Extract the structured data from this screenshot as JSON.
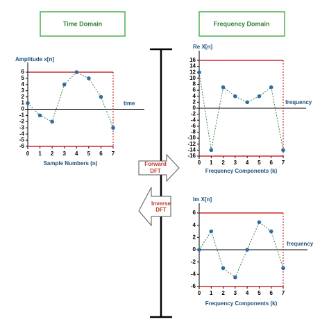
{
  "labels": {
    "time_domain": "Time Domain",
    "frequency_domain": "Frequency Domain",
    "forward": "Forward",
    "forward_dft": "DFT",
    "inverse": "Inverse",
    "inverse_dft": "DFT"
  },
  "chart_data": [
    {
      "type": "line",
      "y_label": "Amplitude x[n]",
      "x_axis_label": "time",
      "x_label": "Sample Numbers (n)",
      "x": [
        0,
        1,
        2,
        3,
        4,
        5,
        6,
        7
      ],
      "values": [
        1,
        -1,
        -2,
        4,
        6,
        5,
        2,
        -3
      ],
      "color": "#2e6da4",
      "xlim": [
        0,
        7
      ],
      "xticks": [
        0,
        1,
        2,
        3,
        4,
        5,
        6,
        7
      ],
      "ylim": [
        -6,
        6
      ],
      "yticks": [
        -6,
        -5,
        -4,
        -3,
        -2,
        -1,
        0,
        1,
        2,
        3,
        4,
        5,
        6
      ],
      "ref_lines": [
        6,
        -6
      ],
      "ref_color": "#c00000"
    },
    {
      "type": "line",
      "y_label": "Re X[n]",
      "x_axis_label": "frequency",
      "x_label": "Frequency Components (k)",
      "x": [
        0,
        1,
        2,
        3,
        4,
        5,
        6,
        7
      ],
      "values": [
        12,
        -14,
        7,
        4,
        2,
        4,
        7,
        -14
      ],
      "color": "#2e6da4",
      "xlim": [
        0,
        7
      ],
      "xticks": [
        0,
        1,
        2,
        3,
        4,
        5,
        6,
        7
      ],
      "ylim": [
        -16,
        16
      ],
      "yticks": [
        -16,
        -14,
        -12,
        -10,
        -8,
        -6,
        -4,
        -2,
        0,
        2,
        4,
        6,
        8,
        10,
        12,
        14,
        16
      ],
      "ref_lines": [
        16,
        -16
      ],
      "ref_color": "#c00000"
    },
    {
      "type": "line",
      "y_label": "Im X[n]",
      "x_axis_label": "frequency",
      "x_label": "Frequency Components (k)",
      "x": [
        0,
        1,
        2,
        3,
        4,
        5,
        6,
        7
      ],
      "values": [
        0,
        3,
        -3,
        -4.5,
        0,
        4.5,
        3,
        -3
      ],
      "color": "#2e6da4",
      "xlim": [
        0,
        7
      ],
      "xticks": [
        0,
        1,
        2,
        3,
        4,
        5,
        6,
        7
      ],
      "ylim": [
        -6,
        6
      ],
      "yticks": [
        -6,
        -4,
        -2,
        0,
        2,
        4,
        6
      ],
      "ref_lines": [
        6,
        -6
      ],
      "ref_color": "#c00000"
    }
  ]
}
